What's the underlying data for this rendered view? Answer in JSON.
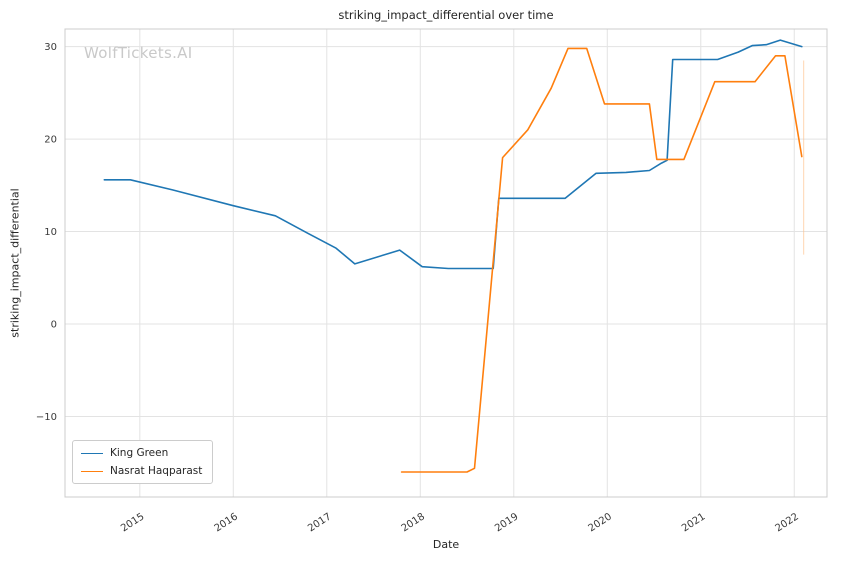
{
  "watermark": "WolfTickets.AI",
  "chart_data": {
    "type": "line",
    "title": "striking_impact_differential over time",
    "xlabel": "Date",
    "ylabel": "striking_impact_differential",
    "xlim": [
      2014.2,
      2022.35
    ],
    "ylim": [
      -18.7,
      31.9
    ],
    "xticks": [
      2015,
      2016,
      2017,
      2018,
      2019,
      2020,
      2021,
      2022
    ],
    "xtick_labels": [
      "2015",
      "2016",
      "2017",
      "2018",
      "2019",
      "2020",
      "2021",
      "2022"
    ],
    "yticks": [
      -10,
      0,
      10,
      20,
      30
    ],
    "ytick_labels": [
      "−10",
      "0",
      "10",
      "20",
      "30"
    ],
    "grid": true,
    "legend_position": "lower left",
    "series": [
      {
        "name": "King Green",
        "color": "#1f77b4",
        "points": [
          [
            2014.62,
            15.6
          ],
          [
            2014.9,
            15.6
          ],
          [
            2015.35,
            14.5
          ],
          [
            2016.0,
            12.8
          ],
          [
            2016.45,
            11.7
          ],
          [
            2016.8,
            9.8
          ],
          [
            2017.1,
            8.2
          ],
          [
            2017.3,
            6.5
          ],
          [
            2017.78,
            8.0
          ],
          [
            2018.02,
            6.2
          ],
          [
            2018.3,
            6.0
          ],
          [
            2018.78,
            6.0
          ],
          [
            2018.84,
            13.6
          ],
          [
            2019.55,
            13.6
          ],
          [
            2019.88,
            16.3
          ],
          [
            2020.2,
            16.4
          ],
          [
            2020.45,
            16.6
          ],
          [
            2020.58,
            17.4
          ],
          [
            2020.64,
            17.7
          ],
          [
            2020.7,
            28.6
          ],
          [
            2021.18,
            28.6
          ],
          [
            2021.4,
            29.4
          ],
          [
            2021.55,
            30.1
          ],
          [
            2021.7,
            30.2
          ],
          [
            2021.85,
            30.7
          ],
          [
            2022.08,
            30.0
          ]
        ]
      },
      {
        "name": "Nasrat Haqparast",
        "color": "#ff7f0e",
        "points": [
          [
            2017.8,
            -16.0
          ],
          [
            2018.5,
            -16.0
          ],
          [
            2018.58,
            -15.6
          ],
          [
            2018.88,
            18.0
          ],
          [
            2019.15,
            21.0
          ],
          [
            2019.4,
            25.5
          ],
          [
            2019.58,
            29.8
          ],
          [
            2019.78,
            29.8
          ],
          [
            2019.97,
            23.8
          ],
          [
            2020.45,
            23.8
          ],
          [
            2020.53,
            17.8
          ],
          [
            2020.82,
            17.8
          ],
          [
            2021.15,
            26.2
          ],
          [
            2021.58,
            26.2
          ],
          [
            2021.8,
            29.0
          ],
          [
            2021.9,
            29.0
          ],
          [
            2022.08,
            18.1
          ]
        ]
      }
    ],
    "annotation_vline": {
      "x": 2022.1,
      "y_from": 7.5,
      "y_to": 28.5,
      "color": "#ffc08a"
    }
  }
}
